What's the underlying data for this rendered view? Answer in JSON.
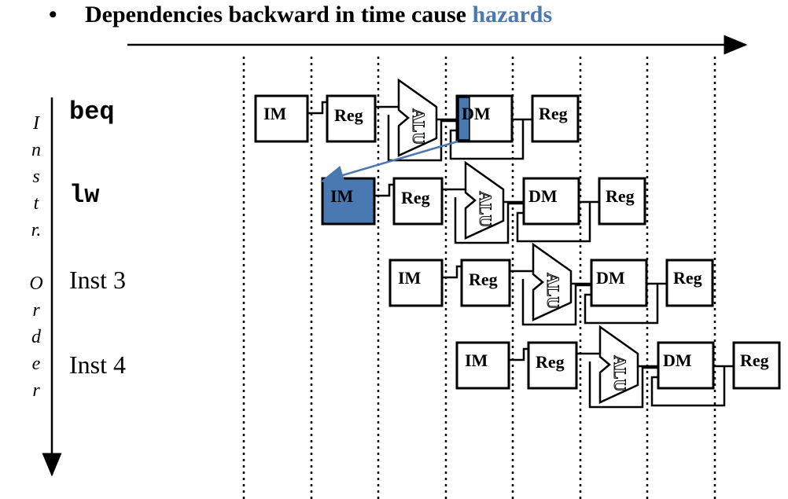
{
  "title": {
    "bullet": "•",
    "text": "Dependencies backward in time cause ",
    "highlight": "hazards",
    "highlight_color": "#4a78b0"
  },
  "axis": {
    "letters": [
      "I",
      "n",
      "s",
      "t",
      "r.",
      "",
      "O",
      "r",
      "d",
      "e",
      "r"
    ]
  },
  "instructions": [
    {
      "label": "beq",
      "font": "mono"
    },
    {
      "label": "lw",
      "font": "mono"
    },
    {
      "label": "Inst 3",
      "font": "serif"
    },
    {
      "label": "Inst 4",
      "font": "serif"
    }
  ],
  "stage_labels": {
    "im": "IM",
    "reg": "Reg",
    "alu": "ALU",
    "dm": "DM",
    "reg_wb": "Reg"
  },
  "colors": {
    "highlight_fill": "#4a78b0",
    "arrow": "#4a78b0"
  }
}
